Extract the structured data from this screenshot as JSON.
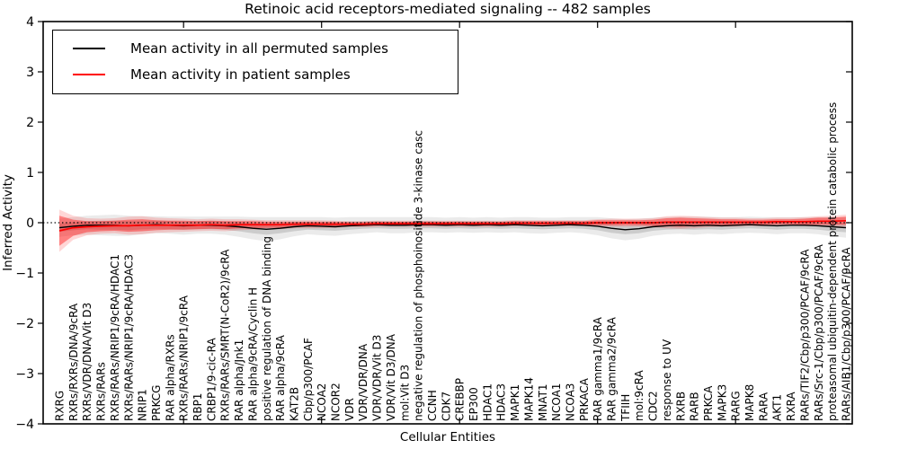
{
  "chart_data": {
    "type": "line",
    "title": "Retinoic acid receptors-mediated signaling -- 482 samples",
    "xlabel": "Cellular Entities",
    "ylabel": "Inferred Activity",
    "ylim": [
      -4,
      4
    ],
    "yticks": [
      4,
      3,
      2,
      1,
      0,
      -1,
      -2,
      -3,
      -4
    ],
    "grid": false,
    "legend_position": "upper left",
    "zero_line": {
      "value": 0,
      "style": "dotted",
      "color": "#000000"
    },
    "categories": [
      "RXRG",
      "RXRs/RXRs/DNA/9cRA",
      "RXRs/VDR/DNA/Vit D3",
      "RXRs/RARs",
      "RXRs/RARs/NRIP1/9cRA/HDAC1",
      "RXRs/RARs/NRIP1/9cRA/HDAC3",
      "NRIP1",
      "PRKCG",
      "RAR alpha/RXRs",
      "RXRs/RARs/NRIP1/9cRA",
      "RBP1",
      "CRBP1/9-cic-RA",
      "RXRs/RARs/SMRT(N-CoR2)/9cRA",
      "RAR alpha/Jnk1",
      "RAR alpha/9cRA/Cyclin H",
      "positive regulation of DNA binding",
      "RAR alpha/9cRA",
      "KAT2B",
      "Cbp/p300/PCAF",
      "NCOA2",
      "NCOR2",
      "VDR",
      "VDR/VDR/DNA",
      "VDR/VDR/Vit D3",
      "VDR/Vit D3/DNA",
      "mol:Vit D3",
      "negative regulation of phosphoinositide 3-kinase casc",
      "CCNH",
      "CDK7",
      "CREBBP",
      "EP300",
      "HDAC1",
      "HDAC3",
      "MAPK1",
      "MAPK14",
      "MNAT1",
      "NCOA1",
      "NCOA3",
      "PRKACA",
      "RAR gamma1/9cRA",
      "RAR gamma2/9cRA",
      "TFIIH",
      "mol:9cRA",
      "CDC2",
      "response to UV",
      "RXRB",
      "RARB",
      "PRKCA",
      "MAPK3",
      "RARG",
      "MAPK8",
      "RARA",
      "AKT1",
      "RXRA",
      "RARs/TIF2/Cbp/p300/PCAF/9cRA",
      "RARs/Src-1/Cbp/p300/PCAF/9cRA",
      "proteasomal ubiquitin-dependent protein catabolic process",
      "RARs/AIB1/Cbp/p300/PCAF/9cRA"
    ],
    "series": [
      {
        "name": "Mean activity in all permuted samples",
        "color": "#000000",
        "band_inner_alpha": 0.13,
        "band_outer_alpha": 0.08,
        "values": [
          -0.1,
          -0.07,
          -0.05,
          -0.05,
          -0.05,
          -0.06,
          -0.05,
          -0.04,
          -0.05,
          -0.06,
          -0.05,
          -0.05,
          -0.06,
          -0.08,
          -0.11,
          -0.13,
          -0.11,
          -0.08,
          -0.06,
          -0.07,
          -0.08,
          -0.06,
          -0.05,
          -0.04,
          -0.05,
          -0.05,
          -0.04,
          -0.04,
          -0.05,
          -0.04,
          -0.05,
          -0.04,
          -0.05,
          -0.04,
          -0.05,
          -0.06,
          -0.05,
          -0.04,
          -0.05,
          -0.07,
          -0.11,
          -0.14,
          -0.12,
          -0.08,
          -0.06,
          -0.05,
          -0.06,
          -0.05,
          -0.06,
          -0.05,
          -0.04,
          -0.05,
          -0.06,
          -0.05,
          -0.05,
          -0.06,
          -0.08,
          -0.1
        ],
        "band_inner": [
          0.08,
          0.08,
          0.08,
          0.09,
          0.09,
          0.09,
          0.08,
          0.08,
          0.08,
          0.08,
          0.08,
          0.08,
          0.08,
          0.09,
          0.1,
          0.11,
          0.1,
          0.09,
          0.08,
          0.08,
          0.08,
          0.08,
          0.07,
          0.07,
          0.07,
          0.07,
          0.07,
          0.07,
          0.07,
          0.07,
          0.07,
          0.07,
          0.07,
          0.07,
          0.07,
          0.07,
          0.07,
          0.07,
          0.07,
          0.08,
          0.09,
          0.09,
          0.09,
          0.08,
          0.08,
          0.08,
          0.08,
          0.08,
          0.08,
          0.07,
          0.07,
          0.07,
          0.08,
          0.07,
          0.07,
          0.08,
          0.09,
          0.09
        ],
        "band_outer": [
          0.18,
          0.18,
          0.19,
          0.2,
          0.21,
          0.2,
          0.18,
          0.17,
          0.17,
          0.18,
          0.17,
          0.17,
          0.18,
          0.2,
          0.22,
          0.24,
          0.22,
          0.19,
          0.17,
          0.18,
          0.18,
          0.17,
          0.16,
          0.15,
          0.16,
          0.16,
          0.15,
          0.15,
          0.15,
          0.15,
          0.15,
          0.15,
          0.15,
          0.15,
          0.16,
          0.16,
          0.15,
          0.15,
          0.16,
          0.18,
          0.2,
          0.21,
          0.2,
          0.18,
          0.17,
          0.17,
          0.18,
          0.17,
          0.17,
          0.16,
          0.16,
          0.16,
          0.17,
          0.16,
          0.16,
          0.17,
          0.19,
          0.2
        ]
      },
      {
        "name": "Mean activity in patient samples",
        "color": "#ff0000",
        "band_inner_alpha": 0.4,
        "band_outer_alpha": 0.16,
        "values": [
          -0.16,
          -0.1,
          -0.08,
          -0.07,
          -0.06,
          -0.06,
          -0.05,
          -0.05,
          -0.05,
          -0.05,
          -0.05,
          -0.04,
          -0.05,
          -0.04,
          -0.04,
          -0.04,
          -0.04,
          -0.03,
          -0.03,
          -0.03,
          -0.03,
          -0.03,
          -0.03,
          -0.02,
          -0.02,
          -0.02,
          -0.02,
          -0.02,
          -0.02,
          -0.02,
          -0.02,
          -0.02,
          -0.02,
          -0.01,
          -0.01,
          -0.01,
          -0.01,
          -0.01,
          -0.01,
          0.0,
          0.0,
          0.0,
          0.0,
          0.0,
          0.01,
          0.01,
          0.01,
          0.01,
          0.01,
          0.01,
          0.01,
          0.01,
          0.02,
          0.02,
          0.02,
          0.03,
          0.03,
          0.04
        ],
        "band_inner": [
          0.3,
          0.16,
          0.11,
          0.1,
          0.1,
          0.12,
          0.12,
          0.1,
          0.09,
          0.09,
          0.08,
          0.08,
          0.08,
          0.07,
          0.07,
          0.06,
          0.06,
          0.05,
          0.05,
          0.05,
          0.05,
          0.04,
          0.04,
          0.04,
          0.04,
          0.04,
          0.04,
          0.04,
          0.04,
          0.04,
          0.04,
          0.04,
          0.04,
          0.04,
          0.04,
          0.04,
          0.04,
          0.04,
          0.04,
          0.05,
          0.05,
          0.05,
          0.05,
          0.06,
          0.08,
          0.09,
          0.08,
          0.07,
          0.06,
          0.06,
          0.05,
          0.05,
          0.05,
          0.05,
          0.06,
          0.07,
          0.07,
          0.08
        ],
        "band_outer": [
          0.42,
          0.24,
          0.17,
          0.15,
          0.15,
          0.18,
          0.18,
          0.15,
          0.14,
          0.13,
          0.12,
          0.12,
          0.12,
          0.11,
          0.1,
          0.09,
          0.09,
          0.08,
          0.08,
          0.08,
          0.07,
          0.06,
          0.06,
          0.06,
          0.06,
          0.06,
          0.06,
          0.06,
          0.06,
          0.06,
          0.06,
          0.06,
          0.06,
          0.06,
          0.06,
          0.06,
          0.06,
          0.06,
          0.06,
          0.07,
          0.08,
          0.08,
          0.08,
          0.09,
          0.12,
          0.13,
          0.12,
          0.1,
          0.09,
          0.09,
          0.08,
          0.08,
          0.08,
          0.08,
          0.09,
          0.1,
          0.11,
          0.12
        ]
      }
    ]
  }
}
